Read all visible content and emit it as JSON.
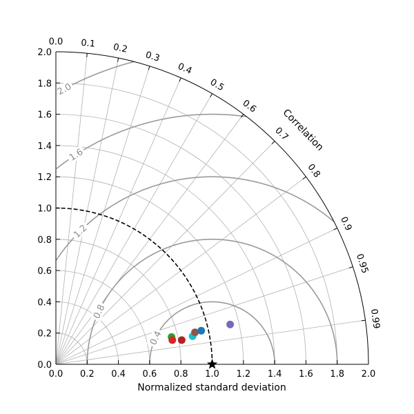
{
  "chart_data": {
    "type": "scatter",
    "subtype": "taylor-diagram",
    "xlabel": "Normalized standard deviation",
    "ylabel": "",
    "angular_axis_label": "Correlation",
    "xlim": [
      0,
      2
    ],
    "ylim": [
      0,
      2
    ],
    "x_ticks": [
      "0.0",
      "0.2",
      "0.4",
      "0.6",
      "0.8",
      "1.0",
      "1.2",
      "1.4",
      "1.6",
      "1.8",
      "2.0"
    ],
    "y_ticks": [
      "0.0",
      "0.2",
      "0.4",
      "0.6",
      "0.8",
      "1.0",
      "1.2",
      "1.4",
      "1.6",
      "1.8",
      "2.0"
    ],
    "correlation_ticks": [
      {
        "value": 0.0,
        "label": "0.0"
      },
      {
        "value": 0.1,
        "label": "0.1"
      },
      {
        "value": 0.2,
        "label": "0.2"
      },
      {
        "value": 0.3,
        "label": "0.3"
      },
      {
        "value": 0.4,
        "label": "0.4"
      },
      {
        "value": 0.5,
        "label": "0.5"
      },
      {
        "value": 0.6,
        "label": "0.6"
      },
      {
        "value": 0.7,
        "label": "0.7"
      },
      {
        "value": 0.8,
        "label": "0.8"
      },
      {
        "value": 0.9,
        "label": "0.9"
      },
      {
        "value": 0.95,
        "label": "0.95"
      },
      {
        "value": 0.99,
        "label": "0.99"
      }
    ],
    "std_grid": [
      0.2,
      0.4,
      0.6,
      0.8,
      1.0,
      1.2,
      1.4,
      1.6,
      1.8
    ],
    "rms_contours": [
      {
        "value": 0.4,
        "label": "0.4"
      },
      {
        "value": 0.8,
        "label": "0.8"
      },
      {
        "value": 1.2,
        "label": "1.2"
      },
      {
        "value": 1.6,
        "label": "1.6"
      },
      {
        "value": 2.0,
        "label": "2.0"
      }
    ],
    "reference": {
      "std": 1.0,
      "marker": "star",
      "color": "#000000"
    },
    "points": [
      {
        "x": 0.74,
        "y": 0.175,
        "color": "#2ca02c"
      },
      {
        "x": 0.745,
        "y": 0.155,
        "color": "#d62728"
      },
      {
        "x": 0.805,
        "y": 0.155,
        "color": "#b22222"
      },
      {
        "x": 0.875,
        "y": 0.18,
        "color": "#17becf"
      },
      {
        "x": 0.89,
        "y": 0.205,
        "color": "#8c564b"
      },
      {
        "x": 0.93,
        "y": 0.215,
        "color": "#1f77b4"
      },
      {
        "x": 1.115,
        "y": 0.255,
        "color": "#7b68b8"
      }
    ],
    "grid": true
  }
}
